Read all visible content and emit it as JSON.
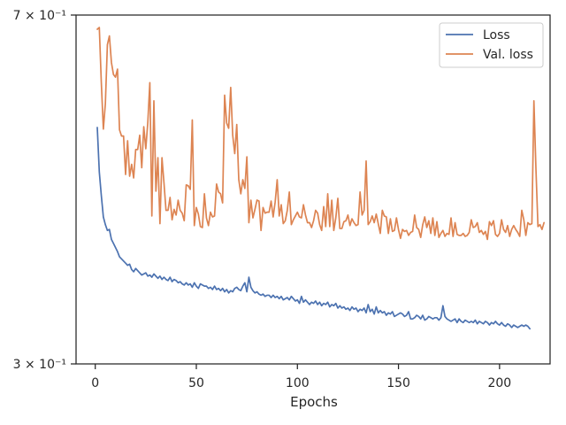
{
  "chart_data": {
    "type": "line",
    "title": "",
    "xlabel": "Epochs",
    "ylabel": "",
    "yscale": "log",
    "xlim": [
      -9.5,
      225
    ],
    "ylim": [
      0.303,
      0.707
    ],
    "grid": false,
    "legend_position": "top-right",
    "x_ticks": [
      0,
      50,
      100,
      150,
      200
    ],
    "x_tick_labels": [
      "0",
      "50",
      "100",
      "150",
      "200"
    ],
    "y_tick_labels": [
      {
        "value": 0.707,
        "label": "7 × 10⁻¹"
      },
      {
        "value": 0.303,
        "label": "3 × 10⁻¹"
      }
    ],
    "series": [
      {
        "name": "Loss",
        "color": "#4c72b0",
        "x_start": 1,
        "values": [
          0.538,
          0.483,
          0.456,
          0.433,
          0.425,
          0.419,
          0.42,
          0.41,
          0.406,
          0.402,
          0.398,
          0.393,
          0.391,
          0.389,
          0.387,
          0.385,
          0.386,
          0.381,
          0.379,
          0.382,
          0.38,
          0.378,
          0.376,
          0.377,
          0.378,
          0.375,
          0.376,
          0.374,
          0.377,
          0.375,
          0.373,
          0.375,
          0.372,
          0.374,
          0.372,
          0.371,
          0.374,
          0.37,
          0.372,
          0.371,
          0.369,
          0.37,
          0.368,
          0.367,
          0.369,
          0.367,
          0.368,
          0.365,
          0.369,
          0.366,
          0.364,
          0.368,
          0.367,
          0.366,
          0.366,
          0.364,
          0.365,
          0.363,
          0.366,
          0.363,
          0.364,
          0.362,
          0.364,
          0.361,
          0.363,
          0.36,
          0.362,
          0.361,
          0.364,
          0.365,
          0.363,
          0.362,
          0.366,
          0.369,
          0.361,
          0.374,
          0.365,
          0.362,
          0.36,
          0.361,
          0.359,
          0.358,
          0.359,
          0.357,
          0.358,
          0.358,
          0.356,
          0.358,
          0.356,
          0.357,
          0.355,
          0.357,
          0.354,
          0.355,
          0.356,
          0.354,
          0.357,
          0.355,
          0.353,
          0.354,
          0.351,
          0.357,
          0.352,
          0.354,
          0.352,
          0.35,
          0.352,
          0.351,
          0.353,
          0.35,
          0.352,
          0.349,
          0.351,
          0.35,
          0.352,
          0.348,
          0.35,
          0.349,
          0.351,
          0.347,
          0.349,
          0.347,
          0.348,
          0.346,
          0.347,
          0.345,
          0.348,
          0.346,
          0.347,
          0.344,
          0.346,
          0.345,
          0.347,
          0.343,
          0.35,
          0.344,
          0.346,
          0.342,
          0.348,
          0.343,
          0.345,
          0.343,
          0.344,
          0.341,
          0.343,
          0.342,
          0.344,
          0.34,
          0.341,
          0.342,
          0.343,
          0.342,
          0.34,
          0.341,
          0.344,
          0.338,
          0.338,
          0.339,
          0.341,
          0.34,
          0.338,
          0.341,
          0.337,
          0.338,
          0.34,
          0.339,
          0.338,
          0.339,
          0.339,
          0.337,
          0.339,
          0.349,
          0.34,
          0.338,
          0.337,
          0.336,
          0.337,
          0.338,
          0.335,
          0.338,
          0.336,
          0.335,
          0.337,
          0.336,
          0.335,
          0.336,
          0.335,
          0.337,
          0.334,
          0.336,
          0.335,
          0.334,
          0.336,
          0.335,
          0.333,
          0.335,
          0.334,
          0.336,
          0.334,
          0.333,
          0.335,
          0.333,
          0.332,
          0.334,
          0.333,
          0.331,
          0.333,
          0.332,
          0.331,
          0.332,
          0.333,
          0.332,
          0.333,
          0.332,
          0.33
        ]
      },
      {
        "name": "Val. loss",
        "color": "#dd8452",
        "x_start": 1,
        "values": [
          0.683,
          0.686,
          0.6,
          0.536,
          0.57,
          0.658,
          0.672,
          0.63,
          0.612,
          0.608,
          0.62,
          0.535,
          0.527,
          0.527,
          0.48,
          0.521,
          0.478,
          0.492,
          0.476,
          0.51,
          0.51,
          0.528,
          0.488,
          0.539,
          0.511,
          0.545,
          0.6,
          0.434,
          0.574,
          0.461,
          0.5,
          0.426,
          0.5,
          0.47,
          0.44,
          0.44,
          0.454,
          0.43,
          0.441,
          0.435,
          0.451,
          0.44,
          0.437,
          0.429,
          0.468,
          0.467,
          0.463,
          0.548,
          0.424,
          0.443,
          0.436,
          0.423,
          0.422,
          0.458,
          0.432,
          0.424,
          0.438,
          0.433,
          0.434,
          0.469,
          0.46,
          0.458,
          0.448,
          0.582,
          0.544,
          0.537,
          0.593,
          0.528,
          0.505,
          0.542,
          0.474,
          0.458,
          0.474,
          0.464,
          0.501,
          0.427,
          0.451,
          0.432,
          0.441,
          0.451,
          0.45,
          0.419,
          0.443,
          0.437,
          0.438,
          0.438,
          0.45,
          0.433,
          0.449,
          0.474,
          0.434,
          0.446,
          0.426,
          0.429,
          0.44,
          0.46,
          0.425,
          0.43,
          0.434,
          0.438,
          0.433,
          0.432,
          0.446,
          0.435,
          0.427,
          0.427,
          0.422,
          0.429,
          0.44,
          0.437,
          0.425,
          0.419,
          0.444,
          0.423,
          0.458,
          0.423,
          0.451,
          0.419,
          0.432,
          0.453,
          0.421,
          0.421,
          0.428,
          0.429,
          0.435,
          0.424,
          0.431,
          0.427,
          0.424,
          0.425,
          0.46,
          0.435,
          0.44,
          0.496,
          0.425,
          0.428,
          0.434,
          0.427,
          0.436,
          0.426,
          0.416,
          0.44,
          0.434,
          0.433,
          0.416,
          0.431,
          0.418,
          0.419,
          0.432,
          0.42,
          0.411,
          0.42,
          0.418,
          0.419,
          0.414,
          0.417,
          0.418,
          0.435,
          0.422,
          0.42,
          0.412,
          0.425,
          0.433,
          0.422,
          0.429,
          0.416,
          0.432,
          0.414,
          0.428,
          0.412,
          0.416,
          0.419,
          0.413,
          0.416,
          0.415,
          0.432,
          0.413,
          0.427,
          0.415,
          0.414,
          0.414,
          0.416,
          0.413,
          0.414,
          0.417,
          0.43,
          0.422,
          0.423,
          0.427,
          0.417,
          0.419,
          0.415,
          0.418,
          0.41,
          0.428,
          0.424,
          0.429,
          0.415,
          0.413,
          0.416,
          0.43,
          0.42,
          0.417,
          0.424,
          0.413,
          0.42,
          0.424,
          0.42,
          0.417,
          0.413,
          0.44,
          0.43,
          0.414,
          0.427,
          0.425,
          0.426,
          0.574,
          0.487,
          0.423,
          0.425,
          0.42,
          0.427
        ]
      }
    ]
  }
}
